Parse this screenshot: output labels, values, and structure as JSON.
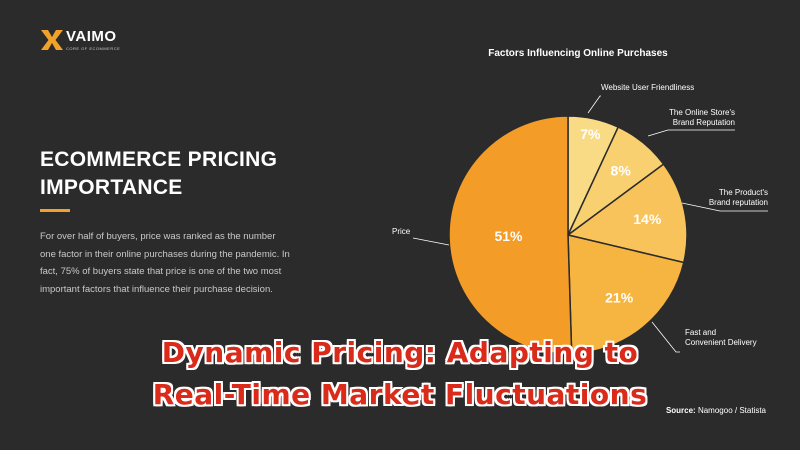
{
  "logo": {
    "name": "VAIMO",
    "tagline": "CORE OF ECOMMERCE"
  },
  "left_panel": {
    "heading_line1": "ECOMMERCE PRICING",
    "heading_line2": "IMPORTANCE",
    "body": "For over half of buyers, price was ranked as the number one factor in their online purchases during the pandemic. In fact, 75% of buyers state that price is one of the two most important factors that influence their purchase decision."
  },
  "overlay_title": {
    "line1": "Dynamic Pricing: Adapting to",
    "line2": "Real-Time Market Fluctuations"
  },
  "colors": {
    "background": "#2b2b2b",
    "accent": "#f0a22a"
  },
  "chart_data": {
    "type": "pie",
    "title": "Factors Influencing Online Purchases",
    "source": "Source: Namogoo / Statista",
    "slices": [
      {
        "label": [
          "Website User Friendliness"
        ],
        "value": 7,
        "display": "7%",
        "color": "#fadb85"
      },
      {
        "label": [
          "The Online Store's",
          "Brand Reputation"
        ],
        "value": 8,
        "display": "8%",
        "color": "#f8d070"
      },
      {
        "label": [
          "The Product's",
          "Brand reputation"
        ],
        "value": 14,
        "display": "14%",
        "color": "#f7c35a"
      },
      {
        "label": [
          "Fast and",
          "Convenient Delivery"
        ],
        "value": 21,
        "display": "21%",
        "color": "#f6b440"
      },
      {
        "label": [
          "Price"
        ],
        "value": 51,
        "display": "51%",
        "color": "#f39c28"
      }
    ]
  }
}
